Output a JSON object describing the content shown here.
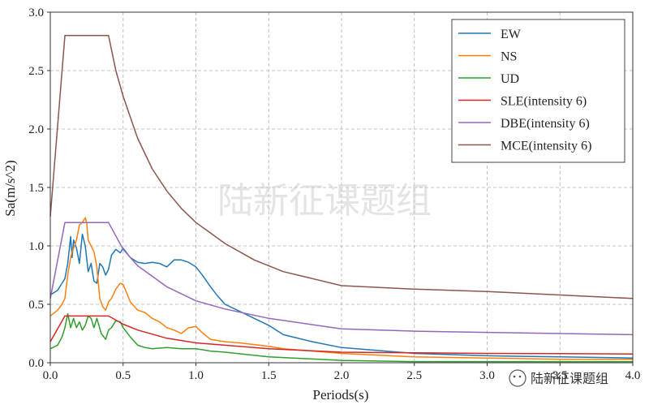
{
  "chart_data": {
    "type": "line",
    "title": "",
    "xlabel": "Periods(s)",
    "ylabel": "Sa(m/s^2)",
    "xlim": [
      0,
      4.0
    ],
    "ylim": [
      0,
      3.0
    ],
    "x_ticks": [
      "0.0",
      "0.5",
      "1.0",
      "1.5",
      "2.0",
      "2.5",
      "3.0",
      "3.5",
      "4.0"
    ],
    "y_ticks": [
      "0.0",
      "0.5",
      "1.0",
      "1.5",
      "2.0",
      "2.5",
      "3.0"
    ],
    "grid": true,
    "legend_position": "top-right",
    "series": [
      {
        "name": "EW",
        "color": "#1f77b4",
        "x": [
          0,
          0.05,
          0.08,
          0.1,
          0.12,
          0.14,
          0.15,
          0.16,
          0.18,
          0.2,
          0.22,
          0.24,
          0.26,
          0.28,
          0.3,
          0.32,
          0.34,
          0.36,
          0.38,
          0.4,
          0.42,
          0.45,
          0.48,
          0.5,
          0.55,
          0.6,
          0.65,
          0.7,
          0.75,
          0.8,
          0.85,
          0.9,
          0.95,
          1.0,
          1.05,
          1.1,
          1.15,
          1.2,
          1.3,
          1.4,
          1.5,
          1.6,
          1.8,
          2.0,
          2.5,
          3.0,
          3.5,
          4.0
        ],
        "y": [
          0.58,
          0.62,
          0.68,
          0.72,
          0.85,
          1.08,
          0.9,
          1.05,
          0.98,
          0.85,
          1.1,
          1.0,
          0.78,
          0.85,
          0.7,
          0.68,
          0.85,
          0.82,
          0.75,
          0.8,
          0.92,
          0.97,
          0.94,
          0.98,
          0.9,
          0.86,
          0.85,
          0.86,
          0.85,
          0.82,
          0.88,
          0.88,
          0.86,
          0.82,
          0.74,
          0.65,
          0.57,
          0.5,
          0.44,
          0.38,
          0.32,
          0.24,
          0.18,
          0.13,
          0.08,
          0.06,
          0.05,
          0.04
        ]
      },
      {
        "name": "NS",
        "color": "#ff7f0e",
        "x": [
          0,
          0.05,
          0.08,
          0.1,
          0.12,
          0.14,
          0.15,
          0.16,
          0.18,
          0.2,
          0.22,
          0.24,
          0.25,
          0.26,
          0.28,
          0.3,
          0.32,
          0.34,
          0.36,
          0.38,
          0.4,
          0.42,
          0.45,
          0.48,
          0.5,
          0.55,
          0.6,
          0.65,
          0.7,
          0.75,
          0.8,
          0.85,
          0.9,
          0.95,
          1.0,
          1.05,
          1.1,
          1.2,
          1.3,
          1.5,
          1.6,
          2.0,
          2.5,
          3.0,
          3.5,
          4.0
        ],
        "y": [
          0.4,
          0.45,
          0.5,
          0.55,
          0.75,
          0.9,
          0.95,
          0.98,
          1.05,
          1.18,
          1.2,
          1.24,
          1.2,
          1.05,
          1.0,
          0.95,
          0.82,
          0.55,
          0.48,
          0.45,
          0.52,
          0.55,
          0.63,
          0.68,
          0.67,
          0.52,
          0.45,
          0.43,
          0.38,
          0.35,
          0.3,
          0.28,
          0.25,
          0.3,
          0.31,
          0.25,
          0.2,
          0.18,
          0.17,
          0.14,
          0.12,
          0.08,
          0.05,
          0.04,
          0.03,
          0.03
        ]
      },
      {
        "name": "UD",
        "color": "#2ca02c",
        "x": [
          0,
          0.05,
          0.08,
          0.1,
          0.12,
          0.14,
          0.16,
          0.18,
          0.2,
          0.22,
          0.24,
          0.26,
          0.28,
          0.3,
          0.32,
          0.35,
          0.38,
          0.4,
          0.42,
          0.45,
          0.48,
          0.5,
          0.55,
          0.6,
          0.65,
          0.7,
          0.8,
          0.9,
          1.0,
          1.1,
          1.2,
          1.5,
          2.0,
          2.5,
          3.0,
          3.5,
          4.0
        ],
        "y": [
          0.12,
          0.15,
          0.22,
          0.3,
          0.42,
          0.3,
          0.38,
          0.3,
          0.35,
          0.28,
          0.32,
          0.4,
          0.38,
          0.3,
          0.38,
          0.25,
          0.2,
          0.28,
          0.3,
          0.36,
          0.35,
          0.3,
          0.22,
          0.15,
          0.13,
          0.12,
          0.13,
          0.12,
          0.12,
          0.1,
          0.09,
          0.05,
          0.02,
          0.01,
          0.01,
          0.01,
          0.01
        ]
      },
      {
        "name": "SLE(intensity 6)",
        "color": "#d62728",
        "x": [
          0,
          0.1,
          0.4,
          0.5,
          0.6,
          0.8,
          1.0,
          1.2,
          1.5,
          2.0,
          2.5,
          3.0,
          3.5,
          4.0
        ],
        "y": [
          0.18,
          0.4,
          0.4,
          0.33,
          0.28,
          0.21,
          0.17,
          0.15,
          0.12,
          0.09,
          0.085,
          0.08,
          0.078,
          0.075
        ]
      },
      {
        "name": "DBE(intensity 6)",
        "color": "#9467bd",
        "x": [
          0,
          0.1,
          0.4,
          0.5,
          0.6,
          0.8,
          1.0,
          1.2,
          1.5,
          2.0,
          2.5,
          3.0,
          3.5,
          4.0
        ],
        "y": [
          0.55,
          1.2,
          1.2,
          0.97,
          0.83,
          0.65,
          0.53,
          0.46,
          0.38,
          0.29,
          0.27,
          0.26,
          0.25,
          0.24
        ]
      },
      {
        "name": "MCE(intensity 6)",
        "color": "#8c564b",
        "x": [
          0,
          0.1,
          0.4,
          0.45,
          0.5,
          0.6,
          0.7,
          0.8,
          0.9,
          1.0,
          1.2,
          1.4,
          1.6,
          1.8,
          2.0,
          2.5,
          3.0,
          3.5,
          4.0
        ],
        "y": [
          1.25,
          2.8,
          2.8,
          2.5,
          2.28,
          1.92,
          1.66,
          1.47,
          1.32,
          1.2,
          1.02,
          0.88,
          0.78,
          0.72,
          0.66,
          0.63,
          0.61,
          0.58,
          0.55
        ]
      }
    ]
  },
  "watermark": {
    "center_text": "陆新征课题组",
    "corner_text": "陆新征课题组"
  }
}
